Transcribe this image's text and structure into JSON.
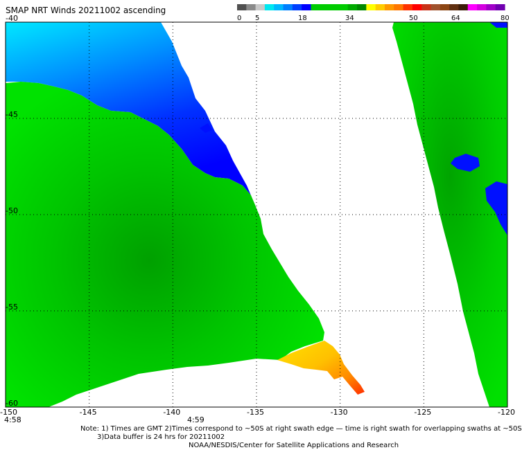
{
  "title": "SMAP NRT Winds 20211002 ascending",
  "colorbar": {
    "tick_labels": [
      "0",
      "5",
      "18",
      "34",
      "50",
      "64",
      "80"
    ],
    "segment_colors": [
      "#505050",
      "#8a8a8a",
      "#c8c8c8",
      "#00e8f0",
      "#00b8ff",
      "#0080ff",
      "#0040ff",
      "#0000ff",
      "#00cc00",
      "#00cc00",
      "#00cc00",
      "#00cc00",
      "#00aa00",
      "#008800",
      "#ffff00",
      "#ffcc00",
      "#ff9900",
      "#ff7700",
      "#ff3300",
      "#ff0000",
      "#c83218",
      "#a0522d",
      "#8b4513",
      "#603010",
      "#3c1c08",
      "#ff00ff",
      "#d400e0",
      "#a000c8",
      "#7000b0"
    ]
  },
  "axes": {
    "lon_ticks": [
      "-150",
      "-145",
      "-140",
      "-135",
      "-130",
      "-125",
      "-120"
    ],
    "lat_ticks": [
      "-40",
      "-45",
      "-50",
      "-55",
      "-60"
    ],
    "lon_range": [
      -150,
      -120
    ],
    "lat_range": [
      -60,
      -40
    ]
  },
  "time_labels": [
    "4:58",
    "4:59"
  ],
  "notes": [
    "Note: 1) Times are GMT 2)Times correspond to ~50S at right swath edge — time is right swath for overlapping swaths at ~50S",
    "3)Data buffer is 24 hrs for 20211002",
    "NOAA/NESDIS/Center for Satellite Applications and Research"
  ],
  "colors": {
    "green": "#00dd00",
    "dark_green": "#00a800",
    "blue": "#0000ff",
    "cyan": "#00e0ff",
    "yellow": "#ffd400",
    "orange": "#ff8800",
    "red": "#ff3000"
  }
}
